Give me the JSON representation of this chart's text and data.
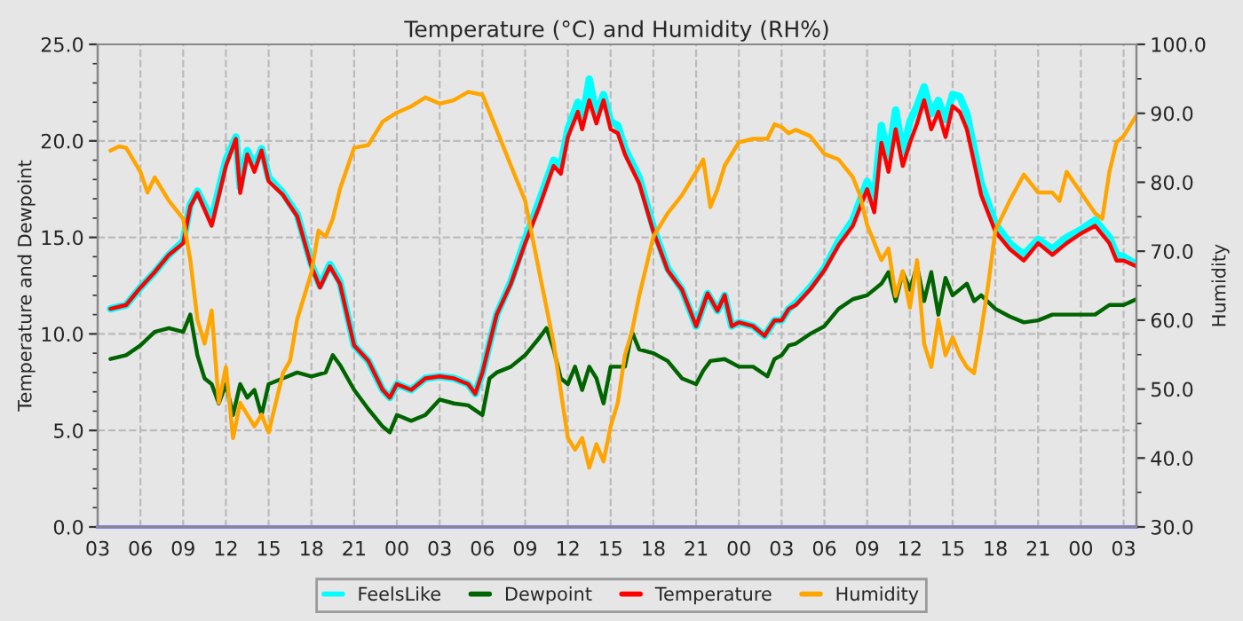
{
  "chart_data": {
    "type": "line",
    "title": "Temperature (°C) and Humidity (RH%)",
    "ylabel": "Temperature and Dewpoint",
    "y2label": "Humidity",
    "xlim": [
      3,
      75.9
    ],
    "xticks": [
      {
        "value": 3,
        "label": "03"
      },
      {
        "value": 6,
        "label": "06"
      },
      {
        "value": 9,
        "label": "09"
      },
      {
        "value": 12,
        "label": "12"
      },
      {
        "value": 15,
        "label": "15"
      },
      {
        "value": 18,
        "label": "18"
      },
      {
        "value": 21,
        "label": "21"
      },
      {
        "value": 24,
        "label": "00"
      },
      {
        "value": 27,
        "label": "03"
      },
      {
        "value": 30,
        "label": "06"
      },
      {
        "value": 33,
        "label": "09"
      },
      {
        "value": 36,
        "label": "12"
      },
      {
        "value": 39,
        "label": "15"
      },
      {
        "value": 42,
        "label": "18"
      },
      {
        "value": 45,
        "label": "21"
      },
      {
        "value": 48,
        "label": "00"
      },
      {
        "value": 51,
        "label": "03"
      },
      {
        "value": 54,
        "label": "06"
      },
      {
        "value": 57,
        "label": "09"
      },
      {
        "value": 60,
        "label": "12"
      },
      {
        "value": 63,
        "label": "15"
      },
      {
        "value": 66,
        "label": "18"
      },
      {
        "value": 69,
        "label": "21"
      },
      {
        "value": 72,
        "label": "00"
      },
      {
        "value": 75,
        "label": "03"
      }
    ],
    "ylim": [
      0,
      25
    ],
    "yticks": [
      {
        "value": 0,
        "label": "0.0"
      },
      {
        "value": 5,
        "label": "5.0"
      },
      {
        "value": 10,
        "label": "10.0"
      },
      {
        "value": 15,
        "label": "15.0"
      },
      {
        "value": 20,
        "label": "20.0"
      },
      {
        "value": 25,
        "label": "25.0"
      }
    ],
    "y2lim": [
      30,
      100
    ],
    "y2ticks": [
      {
        "value": 30,
        "label": "30.0"
      },
      {
        "value": 40,
        "label": "40.0"
      },
      {
        "value": 50,
        "label": "50.0"
      },
      {
        "value": 60,
        "label": "60.0"
      },
      {
        "value": 70,
        "label": "70.0"
      },
      {
        "value": 80,
        "label": "80.0"
      },
      {
        "value": 90,
        "label": "90.0"
      },
      {
        "value": 100,
        "label": "100.0"
      }
    ],
    "grid": true,
    "legend": "bottom",
    "line_style": "solid",
    "marker": "none",
    "series": [
      {
        "name": "FeelsLike",
        "color": "#00ffff",
        "x": [
          3.9,
          5,
          6,
          7,
          8,
          9,
          9.5,
          10,
          11,
          12,
          12.7,
          13,
          13.5,
          14,
          14.5,
          15,
          16,
          17,
          18,
          18.6,
          19.3,
          20,
          21,
          22,
          23,
          23.5,
          24,
          25,
          26,
          27,
          28,
          29,
          29.5,
          30,
          31,
          32,
          33,
          34,
          35,
          35.5,
          36,
          36.7,
          37,
          37.5,
          38,
          38.5,
          39,
          39.5,
          40,
          41,
          42,
          43,
          44,
          45,
          45.8,
          46.5,
          47,
          47.5,
          48,
          49,
          49.8,
          50.5,
          51,
          51.5,
          52,
          53,
          54,
          55,
          56,
          57,
          57.5,
          58,
          58.5,
          59,
          59.5,
          60,
          60.5,
          61,
          61.5,
          62,
          62.5,
          63,
          63.5,
          64,
          65,
          66,
          67,
          68,
          69,
          70,
          71,
          72,
          73,
          74,
          74.5,
          75,
          75.9
        ],
        "values": [
          11.3,
          11.5,
          12.4,
          13.2,
          14.1,
          14.8,
          16.7,
          17.4,
          15.9,
          19.0,
          20.2,
          17.6,
          19.5,
          18.7,
          19.6,
          18.1,
          17.3,
          16.2,
          13.6,
          12.5,
          13.6,
          12.7,
          9.4,
          8.6,
          7.1,
          6.7,
          7.4,
          7.1,
          7.7,
          7.8,
          7.7,
          7.4,
          6.9,
          8.0,
          11.0,
          12.7,
          14.9,
          16.9,
          19.0,
          18.7,
          20.6,
          22.0,
          21.0,
          23.2,
          21.3,
          22.4,
          21.0,
          20.8,
          19.6,
          18.1,
          15.5,
          13.4,
          12.3,
          10.4,
          12.1,
          11.2,
          12.0,
          10.4,
          10.6,
          10.4,
          9.9,
          10.7,
          10.7,
          11.3,
          11.6,
          12.4,
          13.4,
          14.8,
          15.9,
          17.9,
          17.0,
          20.8,
          19.1,
          21.6,
          19.4,
          21.0,
          21.8,
          22.8,
          21.4,
          22.1,
          21.1,
          22.4,
          22.3,
          21.4,
          17.8,
          15.7,
          14.7,
          14.1,
          14.9,
          14.4,
          15.0,
          15.4,
          15.9,
          15.0,
          14.1,
          14.0,
          13.6
        ]
      },
      {
        "name": "Dewpoint",
        "color": "#006400",
        "x": [
          3.9,
          5,
          6,
          7,
          8,
          9,
          9.5,
          10,
          10.5,
          11,
          11.5,
          12,
          12.5,
          13,
          13.5,
          14,
          14.5,
          15,
          16,
          17,
          18,
          19,
          19.5,
          20,
          21,
          22,
          23,
          23.5,
          24,
          25,
          26,
          27,
          28,
          29,
          30,
          30.5,
          31,
          32,
          33,
          34,
          34.5,
          35,
          35.5,
          36,
          36.5,
          37,
          37.5,
          38,
          38.5,
          39,
          40,
          40.5,
          41,
          42,
          43,
          44,
          45,
          45.5,
          46,
          47,
          48,
          49,
          50,
          50.5,
          51,
          51.5,
          52,
          53,
          54,
          55,
          56,
          57,
          58,
          58.5,
          59,
          59.5,
          60,
          60.5,
          61,
          61.5,
          62,
          62.5,
          63,
          63.5,
          64,
          64.5,
          65,
          66,
          67,
          68,
          69,
          70,
          71,
          72,
          73,
          74,
          75,
          75.9
        ],
        "values": [
          8.7,
          8.9,
          9.4,
          10.1,
          10.3,
          10.1,
          11.0,
          8.9,
          7.7,
          7.4,
          6.4,
          7.4,
          5.8,
          7.4,
          6.7,
          7.1,
          5.8,
          7.4,
          7.7,
          8.0,
          7.8,
          8.0,
          8.9,
          8.4,
          7.1,
          6.1,
          5.2,
          4.9,
          5.8,
          5.5,
          5.8,
          6.6,
          6.4,
          6.3,
          5.8,
          7.7,
          8.0,
          8.3,
          8.9,
          9.8,
          10.3,
          9.2,
          7.7,
          7.4,
          8.3,
          7.1,
          8.3,
          7.7,
          6.4,
          8.3,
          8.3,
          10.1,
          9.2,
          9.0,
          8.6,
          7.7,
          7.4,
          8.1,
          8.6,
          8.7,
          8.3,
          8.3,
          7.8,
          8.7,
          8.9,
          9.4,
          9.5,
          10.0,
          10.4,
          11.3,
          11.8,
          12.0,
          12.6,
          13.2,
          11.7,
          13.2,
          12.3,
          13.5,
          11.7,
          13.2,
          11.0,
          12.9,
          12.0,
          12.3,
          12.6,
          11.7,
          12.0,
          11.3,
          10.9,
          10.6,
          10.7,
          11.0,
          11.0,
          11.0,
          11.0,
          11.5,
          11.5,
          11.8
        ]
      },
      {
        "name": "Temperature",
        "color": "#ff0000",
        "x": [
          3.9,
          5,
          6,
          7,
          8,
          9,
          9.5,
          10,
          11,
          12,
          12.7,
          13,
          13.5,
          14,
          14.5,
          15,
          16,
          17,
          18,
          18.6,
          19.3,
          20,
          21,
          22,
          23,
          23.5,
          24,
          25,
          26,
          27,
          28,
          29,
          29.5,
          30,
          31,
          32,
          33,
          34,
          35,
          35.5,
          36,
          36.7,
          37,
          37.5,
          38,
          38.5,
          39,
          39.5,
          40,
          41,
          42,
          43,
          44,
          45,
          45.8,
          46.5,
          47,
          47.5,
          48,
          49,
          49.8,
          50.5,
          51,
          51.5,
          52,
          53,
          54,
          55,
          56,
          57,
          57.5,
          58,
          58.5,
          59,
          59.5,
          60,
          60.5,
          61,
          61.5,
          62,
          62.5,
          63,
          63.5,
          64,
          65,
          66,
          67,
          68,
          69,
          70,
          71,
          72,
          73,
          74,
          74.5,
          75,
          75.9
        ],
        "values": [
          11.3,
          11.5,
          12.4,
          13.2,
          14.1,
          14.7,
          16.6,
          17.3,
          15.6,
          18.7,
          20.1,
          17.3,
          19.3,
          18.4,
          19.5,
          17.9,
          17.2,
          16.1,
          13.5,
          12.4,
          13.5,
          12.6,
          9.4,
          8.6,
          7.1,
          6.7,
          7.4,
          7.1,
          7.7,
          7.8,
          7.7,
          7.4,
          6.9,
          8.0,
          11.0,
          12.6,
          14.7,
          16.6,
          18.7,
          18.3,
          20.2,
          21.5,
          20.6,
          22.1,
          20.9,
          22.1,
          20.6,
          20.4,
          19.3,
          17.8,
          15.3,
          13.3,
          12.3,
          10.4,
          12.1,
          11.2,
          12.0,
          10.4,
          10.6,
          10.4,
          9.9,
          10.7,
          10.7,
          11.3,
          11.5,
          12.3,
          13.3,
          14.6,
          15.6,
          17.5,
          16.3,
          19.9,
          18.4,
          20.6,
          18.7,
          19.9,
          20.9,
          22.1,
          20.6,
          21.5,
          20.2,
          21.8,
          21.5,
          20.6,
          17.2,
          15.3,
          14.4,
          13.8,
          14.7,
          14.1,
          14.7,
          15.2,
          15.6,
          14.7,
          13.8,
          13.8,
          13.5
        ]
      },
      {
        "name": "Humidity",
        "color": "#ffa500",
        "axis": "y2",
        "x": [
          3.9,
          4.5,
          5,
          6,
          6.5,
          7,
          7.5,
          8,
          9,
          9.5,
          10,
          10.5,
          11,
          11.5,
          12,
          12.5,
          13,
          13.5,
          14,
          14.5,
          15,
          16,
          16.5,
          17,
          18,
          18.5,
          19,
          19.5,
          20,
          21,
          22,
          23,
          24,
          25,
          26,
          27,
          28,
          29,
          30,
          31,
          32,
          33,
          33.5,
          34,
          34.5,
          35,
          35.5,
          36,
          36.5,
          37,
          37.5,
          38,
          38.5,
          39,
          39.5,
          40,
          40.5,
          41,
          42,
          43,
          44,
          45,
          45.5,
          46,
          46.5,
          47,
          48,
          49,
          50,
          50.5,
          51,
          51.5,
          52,
          53,
          54,
          55,
          56,
          56.5,
          57,
          58,
          58.5,
          59,
          59.5,
          60,
          60.5,
          61,
          61.5,
          62,
          62.5,
          63,
          63.5,
          64,
          64.5,
          65,
          65.5,
          66,
          67,
          68,
          69,
          70,
          70.5,
          71,
          72,
          73,
          73.5,
          74,
          74.5,
          75,
          75.9
        ],
        "values": [
          84.6,
          85.2,
          85.0,
          81.5,
          78.5,
          80.7,
          79.0,
          77.3,
          74.7,
          68.7,
          60.1,
          56.6,
          61.4,
          48.0,
          53.2,
          42.9,
          48.0,
          46.3,
          44.6,
          46.3,
          43.7,
          52.3,
          54.1,
          60.1,
          66.9,
          73.0,
          72.1,
          74.7,
          79.0,
          85.0,
          85.4,
          88.8,
          90.1,
          91.0,
          92.3,
          91.4,
          91.9,
          93.1,
          92.7,
          87.6,
          82.4,
          77.3,
          72.1,
          66.9,
          61.8,
          56.6,
          49.7,
          42.9,
          41.2,
          42.9,
          38.6,
          42.0,
          39.5,
          44.6,
          48.0,
          54.9,
          58.4,
          63.5,
          72.1,
          75.5,
          78.1,
          81.5,
          83.3,
          76.4,
          79.0,
          82.4,
          85.8,
          86.3,
          86.3,
          88.4,
          88.0,
          87.1,
          87.6,
          86.7,
          84.1,
          83.3,
          80.7,
          78.1,
          73.8,
          68.7,
          70.4,
          63.5,
          67.1,
          61.8,
          68.7,
          56.6,
          53.2,
          60.1,
          54.9,
          57.5,
          54.9,
          53.2,
          52.3,
          58.4,
          65.2,
          73.0,
          77.3,
          81.1,
          78.5,
          78.5,
          77.3,
          81.5,
          78.5,
          75.5,
          74.7,
          81.5,
          85.8,
          86.7,
          89.7
        ]
      }
    ]
  }
}
